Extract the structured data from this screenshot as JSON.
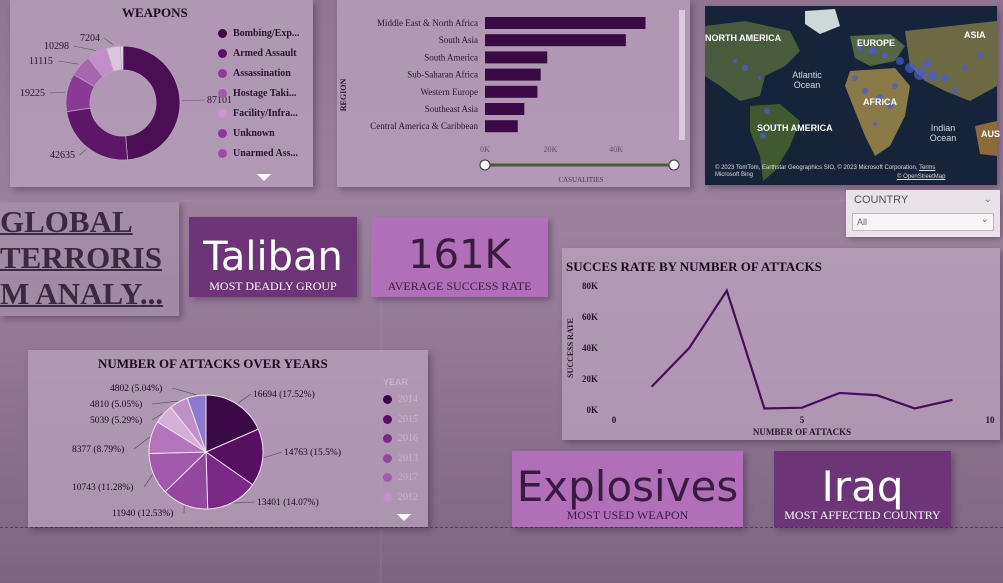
{
  "weapons": {
    "title": "WEAPONS",
    "legend": [
      {
        "label": "Bombing/Exp...",
        "color": "#3e0b45"
      },
      {
        "label": "Armed Assault",
        "color": "#5a1363"
      },
      {
        "label": "Assassination",
        "color": "#8e3c98"
      },
      {
        "label": "Hostage Taki...",
        "color": "#a15aaa"
      },
      {
        "label": "Facility/Infra...",
        "color": "#c794cc"
      },
      {
        "label": "Unknown",
        "color": "#8a3a95"
      },
      {
        "label": "Unarmed Ass...",
        "color": "#9b4aa5"
      }
    ],
    "slices": [
      {
        "value": 87101,
        "label": "87101",
        "color": "#4b0e55"
      },
      {
        "value": 42635,
        "label": "42635",
        "color": "#5d1668"
      },
      {
        "value": 19225,
        "label": "19225",
        "color": "#8a3a95"
      },
      {
        "value": 11115,
        "label": "11115",
        "color": "#a866b0"
      },
      {
        "value": 10298,
        "label": "10298",
        "color": "#c28ec8"
      },
      {
        "value": 7204,
        "label": "7204",
        "color": "#ddc3e0"
      },
      {
        "value": 1200,
        "label": "",
        "color": "#f0e4f1"
      }
    ]
  },
  "region_chart": {
    "axis_label": "REGION",
    "x_axis_label": "CASUALITIES",
    "bar_color": "#3a0a45",
    "ticks": [
      "0K",
      "20K",
      "40K"
    ],
    "xmax": 58000,
    "regions": [
      {
        "label": "Middle East & North Africa",
        "value": 49000
      },
      {
        "label": "South Asia",
        "value": 43000
      },
      {
        "label": "South America",
        "value": 19000
      },
      {
        "label": "Sub-Saharan Africa",
        "value": 17000
      },
      {
        "label": "Western Europe",
        "value": 16000
      },
      {
        "label": "Southeast Asia",
        "value": 12000
      },
      {
        "label": "Central America & Caribbean",
        "value": 10000
      }
    ]
  },
  "map": {
    "labels": [
      "NORTH AMERICA",
      "EUROPE",
      "ASIA",
      "Atlantic Ocean",
      "AFRICA",
      "SOUTH AMERICA",
      "Indian Ocean",
      "AUS"
    ],
    "credit": "© 2023 TomTom, Earthstar Geographics SIO, © 2023 Microsoft Corporation,",
    "terms": "Terms",
    "bing": "Microsoft Bing",
    "osm": "© OpenStreetMap"
  },
  "country_slicer": {
    "title": "COUNTRY",
    "value": "All"
  },
  "main_title": {
    "lines": [
      "GLOBAL",
      "TERRORIS",
      "M ANALY..."
    ]
  },
  "kpis": {
    "group": {
      "value": "Taliban",
      "caption": "MOST DEADLY GROUP"
    },
    "success": {
      "value": "161K",
      "caption": "AVERAGE SUCCESS RATE"
    },
    "weapon": {
      "value": "Explosives",
      "caption": "MOST USED WEAPON"
    },
    "country": {
      "value": "Iraq",
      "caption": "MOST AFFECTED COUNTRY"
    }
  },
  "success_chart": {
    "title": "SUCCES RATE BY NUMBER OF ATTACKS",
    "ylabel": "SUCCESS RATE",
    "xlabel": "NUMBER OF ATTACKS",
    "yticks": [
      "0K",
      "20K",
      "40K",
      "60K",
      "80K"
    ],
    "xticks": [
      "0",
      "5",
      "10"
    ],
    "line_color": "#4a0e56"
  },
  "years_chart": {
    "title": "NUMBER OF ATTACKS OVER YEARS",
    "legend_title": "YEAR",
    "slices": [
      {
        "value": 16694,
        "label": "16694 (17.52%)",
        "color": "#3a0844"
      },
      {
        "value": 14763,
        "label": "14763 (15.5%)",
        "color": "#570f62"
      },
      {
        "value": 13401,
        "label": "13401 (14.07%)",
        "color": "#7a2a86"
      },
      {
        "value": 11940,
        "label": "11940 (12.53%)",
        "color": "#93479d"
      },
      {
        "value": 10743,
        "label": "10743 (11.28%)",
        "color": "#a35aad"
      },
      {
        "value": 8377,
        "label": "8377 (8.79%)",
        "color": "#b674bf"
      },
      {
        "value": 5039,
        "label": "5039 (5.29%)",
        "color": "#d4b0d9"
      },
      {
        "value": 4810,
        "label": "4810 (5.05%)",
        "color": "#c290c9"
      },
      {
        "value": 4802,
        "label": "4802 (5.04%)",
        "color": "#8c7ad0"
      }
    ],
    "years": [
      {
        "label": "2014",
        "color": "#3a0844"
      },
      {
        "label": "2015",
        "color": "#570f62"
      },
      {
        "label": "2016",
        "color": "#7a2a86"
      },
      {
        "label": "2013",
        "color": "#93479d"
      },
      {
        "label": "2017",
        "color": "#a35aad"
      },
      {
        "label": "2012",
        "color": "#c290c9"
      }
    ]
  },
  "chart_data": [
    {
      "type": "pie",
      "title": "WEAPONS",
      "categories": [
        "Bombing/Exp...",
        "Armed Assault",
        "Assassination",
        "Hostage Taki...",
        "Facility/Infra...",
        "Unknown",
        "Unarmed Ass..."
      ],
      "values": [
        87101,
        42635,
        19225,
        11115,
        10298,
        7204,
        1200
      ]
    },
    {
      "type": "bar",
      "categories": [
        "Middle East & North Africa",
        "South Asia",
        "South America",
        "Sub-Saharan Africa",
        "Western Europe",
        "Southeast Asia",
        "Central America & Caribbean"
      ],
      "values": [
        49000,
        43000,
        19000,
        17000,
        16000,
        12000,
        10000
      ],
      "xlabel": "CASUALITIES",
      "ylabel": "REGION",
      "xlim": [
        0,
        58000
      ]
    },
    {
      "type": "line",
      "title": "SUCCES RATE BY NUMBER OF ATTACKS",
      "x": [
        1,
        2,
        3,
        4,
        5,
        6,
        7,
        8,
        9
      ],
      "y": [
        15000,
        40000,
        77000,
        1000,
        1500,
        11000,
        9500,
        1000,
        6500
      ],
      "xlabel": "NUMBER OF ATTACKS",
      "ylabel": "SUCCESS RATE",
      "xlim": [
        0,
        10
      ],
      "ylim": [
        0,
        80000
      ]
    },
    {
      "type": "pie",
      "title": "NUMBER OF ATTACKS OVER YEARS",
      "values": [
        16694,
        14763,
        13401,
        11940,
        10743,
        8377,
        5039,
        4810,
        4802
      ],
      "legend": [
        "2014",
        "2015",
        "2016",
        "2013",
        "2017",
        "2012"
      ]
    }
  ]
}
